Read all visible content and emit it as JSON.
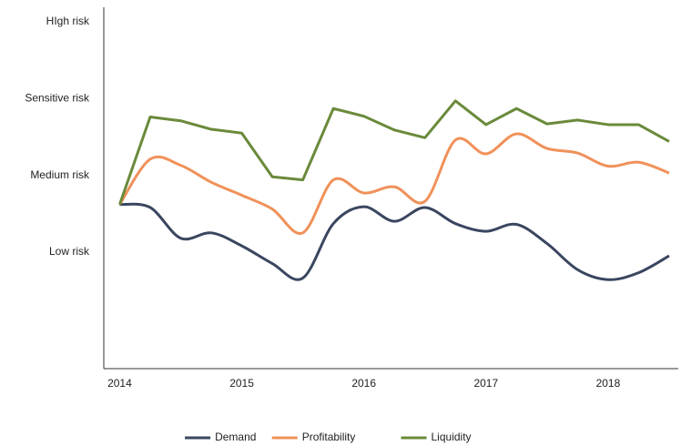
{
  "chart_data": {
    "type": "line",
    "x": [
      2014,
      2014.25,
      2014.5,
      2014.75,
      2015,
      2015.25,
      2015.5,
      2015.75,
      2016,
      2016.25,
      2016.5,
      2016.75,
      2017,
      2017.25,
      2017.5,
      2017.75,
      2018,
      2018.25,
      2018.5
    ],
    "series": [
      {
        "name": "Demand",
        "color": "#3a4660",
        "smooth": true,
        "values": [
          1.62,
          1.58,
          1.18,
          1.25,
          1.08,
          0.85,
          0.66,
          1.37,
          1.59,
          1.4,
          1.58,
          1.37,
          1.27,
          1.36,
          1.11,
          0.77,
          0.64,
          0.73,
          0.95
        ]
      },
      {
        "name": "Profitability",
        "color": "#f0915a",
        "smooth": true,
        "values": [
          1.62,
          2.21,
          2.13,
          1.91,
          1.74,
          1.56,
          1.25,
          1.94,
          1.77,
          1.85,
          1.66,
          2.46,
          2.28,
          2.54,
          2.35,
          2.29,
          2.12,
          2.17,
          2.03
        ]
      },
      {
        "name": "Liquidity",
        "color": "#6a8a3a",
        "smooth": false,
        "values": [
          1.62,
          2.76,
          2.71,
          2.6,
          2.55,
          1.98,
          1.94,
          2.87,
          2.77,
          2.59,
          2.49,
          2.97,
          2.66,
          2.87,
          2.67,
          2.72,
          2.66,
          2.66,
          2.44
        ]
      }
    ],
    "xlim": [
      2013.87,
      2018.5
    ],
    "xticks": [
      2014,
      2015,
      2016,
      2017,
      2018
    ],
    "ylim": [
      -0.52,
      4
    ],
    "yticks": [
      {
        "value": 1,
        "label": "Low risk"
      },
      {
        "value": 2,
        "label": "Medium risk"
      },
      {
        "value": 3,
        "label": "Sensitive risk"
      },
      {
        "value": 4,
        "label": "HIgh risk"
      }
    ],
    "legend": "bottom"
  }
}
